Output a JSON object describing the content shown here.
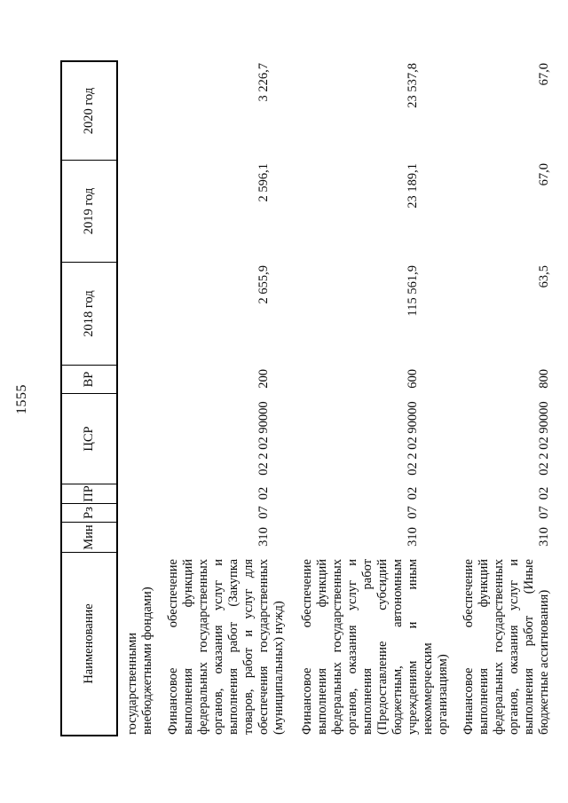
{
  "page": {
    "number": "1555"
  },
  "table": {
    "headers": {
      "name": "Наименование",
      "min": "Мин",
      "rz": "Рз",
      "pr": "ПР",
      "csr": "ЦСР",
      "vr": "ВР",
      "y2018": "2018 год",
      "y2019": "2019 год",
      "y2020": "2020 год"
    },
    "continuation_text": "государственными внебюджетными фондами)",
    "rows": [
      {
        "name": "Финансовое обеспечение выполнения функций федеральных государственных органов, оказания услуг и выполнения работ (Закупка товаров, работ и услуг для обеспечения государственных (муниципальных) нужд)",
        "min": "310",
        "rz": "07",
        "pr": "02",
        "csr": "02 2 02 90000",
        "vr": "200",
        "y2018": "2 655,9",
        "y2019": "2 596,1",
        "y2020": "3 226,7"
      },
      {
        "name": "Финансовое обеспечение выполнения функций федеральных государственных органов, оказания услуг и выполнения работ (Предоставление субсидий бюджетным, автономным учреждениям и иным некоммерческим организациям)",
        "min": "310",
        "rz": "07",
        "pr": "02",
        "csr": "02 2 02 90000",
        "vr": "600",
        "y2018": "115 561,9",
        "y2019": "23 189,1",
        "y2020": "23 537,8"
      },
      {
        "name": "Финансовое обеспечение выполнения функций федеральных государственных органов, оказания услуг и выполнения работ (Иные бюджетные ассигнования)",
        "min": "310",
        "rz": "07",
        "pr": "02",
        "csr": "02 2 02 90000",
        "vr": "800",
        "y2018": "63,5",
        "y2019": "67,0",
        "y2020": "67,0"
      }
    ]
  }
}
